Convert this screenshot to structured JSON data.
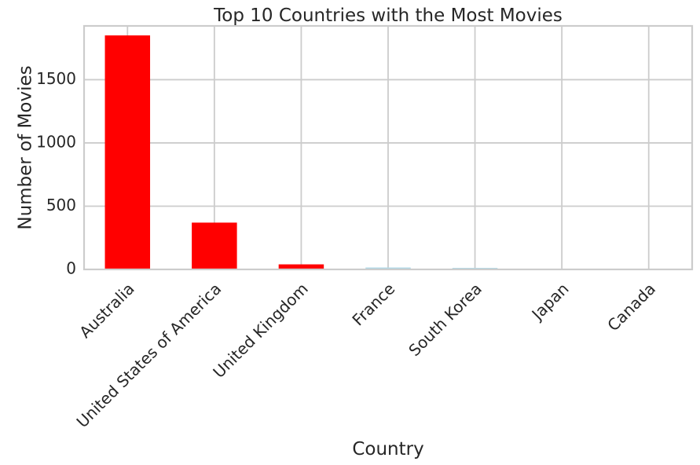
{
  "chart_data": {
    "type": "bar",
    "title": "Top 10 Countries with the Most Movies",
    "xlabel": "Country",
    "ylabel": "Number of Movies",
    "categories": [
      "Australia",
      "United States of America",
      "United Kingdom",
      "France",
      "South Korea",
      "Japan",
      "Canada"
    ],
    "values": [
      1850,
      370,
      40,
      15,
      12,
      5,
      5
    ],
    "colors": [
      "#ff0000",
      "#ff0000",
      "#ff0000",
      "#add8e6",
      "#add8e6",
      "#add8e6",
      "#add8e6"
    ],
    "ylim": [
      0,
      1925
    ],
    "yticks": [
      0,
      500,
      1000,
      1500
    ],
    "grid": true
  }
}
